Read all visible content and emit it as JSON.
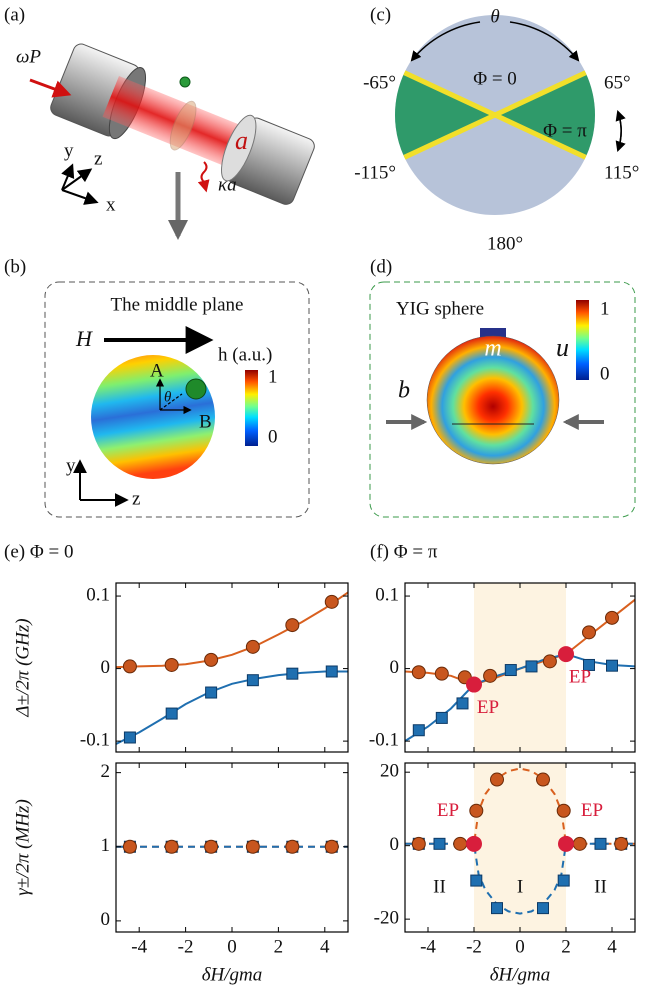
{
  "panel_a": {
    "label": "(a)",
    "pump": "ωP",
    "mode": "a",
    "loss": "κa",
    "axes": [
      "y",
      "z",
      "x"
    ]
  },
  "panel_b": {
    "label": "(b)",
    "title": "The middle plane",
    "field": "H",
    "colorbar_label": "h (a.u.)",
    "colorbar_max": "1",
    "colorbar_min": "0",
    "points": [
      "A",
      "B"
    ],
    "angle": "θ",
    "axes": [
      "y",
      "z"
    ]
  },
  "panel_c": {
    "label": "(c)",
    "angle": "θ",
    "angles": [
      "-65°",
      "65°",
      "-115°",
      "115°",
      "180°"
    ],
    "regions": [
      "Φ = 0",
      "Φ = π"
    ]
  },
  "panel_d": {
    "label": "(d)",
    "title": "YIG sphere",
    "colorbar_label": "u",
    "colorbar_max": "1",
    "colorbar_min": "0",
    "drive": "b",
    "mode": "m"
  },
  "chart_data": [
    {
      "type": "scatter",
      "title": "(e) Φ = 0",
      "ylabel": "Δ±/2π (GHz)",
      "xlim": [
        -5,
        5
      ],
      "xticks": [
        -4,
        -2,
        0,
        2,
        4
      ],
      "show_xtick_labels": false,
      "ylim": [
        -0.115,
        0.118
      ],
      "yticks": [
        -0.1,
        0,
        0.1
      ],
      "series": [
        {
          "style": "line",
          "color": "#d9601f",
          "x": [
            -5,
            -4,
            -3,
            -2,
            -1,
            0,
            1,
            2,
            3,
            4,
            5
          ],
          "values": [
            0.002,
            0.003,
            0.004,
            0.006,
            0.011,
            0.019,
            0.031,
            0.047,
            0.064,
            0.083,
            0.105
          ]
        },
        {
          "style": "line",
          "color": "#1f6fb0",
          "x": [
            -5,
            -4,
            -3,
            -2,
            -1,
            0,
            1,
            2,
            3,
            4,
            5
          ],
          "values": [
            -0.104,
            -0.088,
            -0.069,
            -0.049,
            -0.033,
            -0.021,
            -0.014,
            -0.009,
            -0.006,
            -0.004,
            -0.004
          ]
        },
        {
          "style": "circle",
          "color": "#c8561e",
          "x": [
            -4.4,
            -2.6,
            -0.9,
            0.9,
            2.6,
            4.3
          ],
          "values": [
            0.003,
            0.005,
            0.012,
            0.03,
            0.06,
            0.092
          ]
        },
        {
          "style": "square",
          "color": "#1f6fb0",
          "x": [
            -4.4,
            -2.6,
            -0.9,
            0.9,
            2.6,
            4.3
          ],
          "values": [
            -0.095,
            -0.062,
            -0.033,
            -0.016,
            -0.007,
            -0.004
          ]
        }
      ]
    },
    {
      "type": "scatter",
      "ylabel": "γ±/2π (MHz)",
      "xlabel": "δH/gma",
      "xlim": [
        -5,
        5
      ],
      "xticks": [
        -4,
        -2,
        0,
        2,
        4
      ],
      "show_xtick_labels": true,
      "ylim": [
        -0.15,
        2.13
      ],
      "yticks": [
        0,
        1,
        2
      ],
      "series": [
        {
          "style": "dashed",
          "color": "#d9601f",
          "x": [
            -5,
            5
          ],
          "values": [
            1,
            1
          ]
        },
        {
          "style": "dashed",
          "color": "#1f6fb0",
          "x": [
            -5,
            5
          ],
          "values": [
            1,
            1
          ]
        },
        {
          "style": "square",
          "color": "#1f6fb0",
          "x": [
            -4.4,
            -2.6,
            -0.9,
            0.9,
            2.6,
            4.3
          ],
          "values": [
            1,
            1,
            1,
            1,
            1,
            1
          ]
        },
        {
          "style": "circle",
          "color": "#c8561e",
          "x": [
            -4.4,
            -2.6,
            -0.9,
            0.9,
            2.6,
            4.3
          ],
          "values": [
            1,
            1,
            1,
            1,
            1,
            1
          ]
        }
      ]
    },
    {
      "type": "scatter",
      "title": "(f) Φ = π",
      "xlim": [
        -5,
        5
      ],
      "xticks": [
        -4,
        -2,
        0,
        2,
        4
      ],
      "show_xtick_labels": false,
      "ylim": [
        -0.115,
        0.118
      ],
      "yticks": [
        -0.1,
        0,
        0.1
      ],
      "shaded": [
        -2,
        2
      ],
      "shade_color": "#fdf3e1",
      "series": [
        {
          "style": "line",
          "color": "#d9601f",
          "x": [
            -5,
            -4,
            -3,
            -2,
            -1,
            0,
            1,
            2,
            3,
            4,
            5
          ],
          "values": [
            -0.004,
            -0.006,
            -0.01,
            -0.022,
            -0.012,
            0,
            0.01,
            0.02,
            0.045,
            0.07,
            0.095
          ]
        },
        {
          "style": "line",
          "color": "#1f6fb0",
          "x": [
            -5,
            -4,
            -3,
            -2,
            -1,
            0,
            1,
            2,
            3,
            4,
            5
          ],
          "values": [
            -0.1,
            -0.08,
            -0.055,
            -0.022,
            -0.01,
            0,
            0.012,
            0.02,
            0.01,
            0.005,
            0.003
          ]
        },
        {
          "style": "square",
          "color": "#1f6fb0",
          "x": [
            -4.4,
            -3.4,
            -2.5,
            -0.4,
            0.5,
            3,
            4
          ],
          "values": [
            -0.085,
            -0.068,
            -0.048,
            -0.002,
            0.003,
            0.005,
            0.004
          ]
        },
        {
          "style": "circle",
          "color": "#c8561e",
          "x": [
            -4.4,
            -3.4,
            -2.4,
            -1.3,
            1.3,
            3,
            4
          ],
          "values": [
            -0.005,
            -0.007,
            -0.012,
            -0.01,
            0.01,
            0.05,
            0.07
          ]
        },
        {
          "style": "dot",
          "color": "#d81e3c",
          "x": [
            -2,
            2
          ],
          "values": [
            -0.022,
            0.02
          ],
          "labels": [
            "EP",
            "EP"
          ]
        }
      ]
    },
    {
      "type": "scatter",
      "xlabel": "δH/gma",
      "xlim": [
        -5,
        5
      ],
      "xticks": [
        -4,
        -2,
        0,
        2,
        4
      ],
      "show_xtick_labels": true,
      "ylim": [
        -23.5,
        22.5
      ],
      "yticks": [
        -20,
        0,
        20
      ],
      "shaded": [
        -2,
        2
      ],
      "shade_color": "#fdf3e1",
      "region_labels": [
        "II",
        "I",
        "II"
      ],
      "series": [
        {
          "style": "dashed",
          "color": "#d9601f",
          "x": [
            -5,
            -4,
            -3,
            -2,
            -1.8,
            -1.5,
            -1,
            -0.5,
            0,
            0.5,
            1,
            1.5,
            1.8,
            2,
            3,
            4,
            5
          ],
          "values": [
            0.5,
            0.5,
            0.5,
            0.5,
            9.4,
            14.1,
            18.3,
            20.3,
            21,
            20.3,
            18.3,
            14.1,
            9.4,
            0.5,
            0.5,
            0.5,
            0.5
          ]
        },
        {
          "style": "dashed",
          "color": "#1f6fb0",
          "x": [
            -5,
            -4,
            -3,
            -2,
            -1.8,
            -1.5,
            -1,
            -0.5,
            0,
            0.5,
            1,
            1.5,
            1.8,
            2,
            3,
            4,
            5
          ],
          "values": [
            0.5,
            0.5,
            0.5,
            0.5,
            -7.8,
            -12.1,
            -16,
            -17.9,
            -18.5,
            -17.9,
            -16,
            -12.1,
            -7.8,
            0.5,
            0.5,
            0.5,
            0.5
          ]
        },
        {
          "style": "square",
          "color": "#1f6fb0",
          "x": [
            -4.4,
            -3.5,
            -1.9,
            -1,
            1,
            1.9,
            3.5,
            4.4
          ],
          "values": [
            0.5,
            0.5,
            -9.5,
            -17,
            -17,
            -9.5,
            0.5,
            0.5
          ]
        },
        {
          "style": "circle",
          "color": "#c8561e",
          "x": [
            -4.4,
            -2.6,
            -1.9,
            -1,
            1,
            1.9,
            2.6,
            4.4
          ],
          "values": [
            0.5,
            0.5,
            9.5,
            18,
            18,
            9.5,
            0.5,
            0.5
          ]
        },
        {
          "style": "dot",
          "color": "#d81e3c",
          "x": [
            -2,
            2
          ],
          "values": [
            0.5,
            0.5
          ],
          "labels": [
            "EP",
            "EP"
          ]
        }
      ]
    }
  ]
}
